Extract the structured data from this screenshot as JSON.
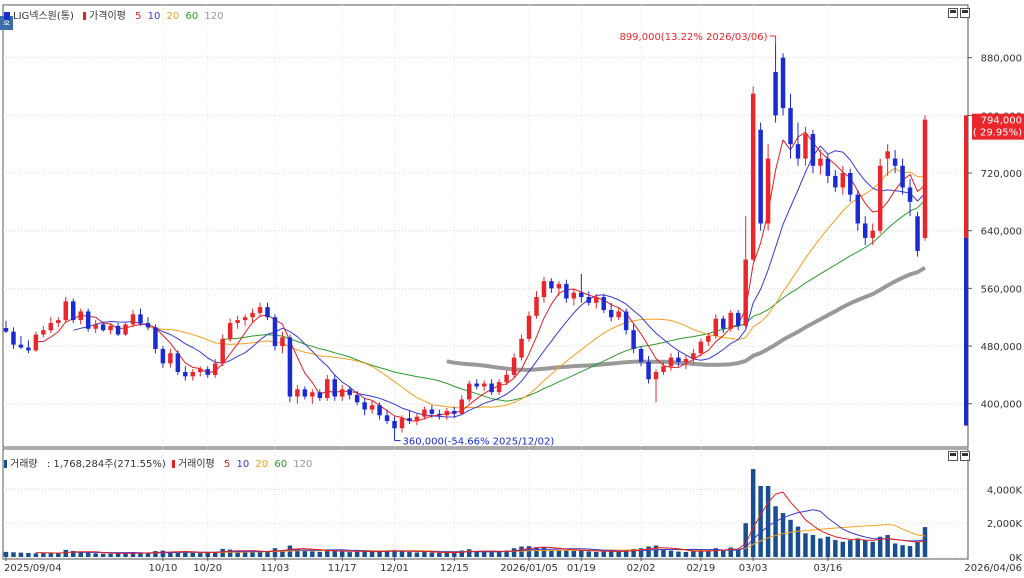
{
  "price_panel": {
    "stock_name": "LIG넥스원(통)",
    "ma_label": "가격이평",
    "ma_periods": [
      "5",
      "10",
      "20",
      "60",
      "120"
    ],
    "y_ticks": [
      "880,000",
      "800,000",
      "720,000",
      "640,000",
      "560,000",
      "480,000",
      "400,000"
    ],
    "high_annotation": "899,000(13.22% 2026/03/06)",
    "low_annotation": "360,000(-54.66% 2025/12/02)",
    "current_price": "794,000",
    "current_change": "( 29.95%)"
  },
  "volume_panel": {
    "label": "거래량",
    "value_text": ": 1,768,284주(271.55%)",
    "ma_label": "거래이평",
    "ma_periods": [
      "5",
      "10",
      "20",
      "60",
      "120"
    ],
    "y_ticks": [
      "4,000K",
      "2,000K",
      "0K"
    ]
  },
  "x_axis": {
    "labels": [
      "2025/09/04",
      "10/10",
      "10/20",
      "11/03",
      "11/17",
      "12/01",
      "12/15",
      "2026/01/05",
      "01/19",
      "02/02",
      "02/19",
      "03/03",
      "03/16",
      "2026/04/06"
    ]
  },
  "corner_tab": "호",
  "colors": {
    "up": "#e8262b",
    "down": "#1a2bd1",
    "ma5": "#e02020",
    "ma10": "#3a3ad6",
    "ma20": "#f0a020",
    "ma60": "#2a9a2a",
    "ma120": "#999999",
    "volume_bar": "#1a4f8f"
  },
  "chart_data": {
    "type": "candlestick",
    "price_ylim": [
      340000,
      935000
    ],
    "volume_ylim": [
      0,
      5500
    ],
    "volume_unit": "K",
    "candles": [
      {
        "d": "2025/09/04",
        "o": 505000,
        "h": 515000,
        "l": 498000,
        "c": 500000,
        "v": 300
      },
      {
        "d": "",
        "o": 500000,
        "h": 506000,
        "l": 476000,
        "c": 482000,
        "v": 280
      },
      {
        "d": "",
        "o": 482000,
        "h": 494000,
        "l": 476000,
        "c": 478000,
        "v": 260
      },
      {
        "d": "",
        "o": 478000,
        "h": 488000,
        "l": 470000,
        "c": 474000,
        "v": 240
      },
      {
        "d": "",
        "o": 474000,
        "h": 500000,
        "l": 472000,
        "c": 496000,
        "v": 220
      },
      {
        "d": "",
        "o": 496000,
        "h": 508000,
        "l": 492000,
        "c": 502000,
        "v": 230
      },
      {
        "d": "",
        "o": 502000,
        "h": 520000,
        "l": 498000,
        "c": 512000,
        "v": 260
      },
      {
        "d": "",
        "o": 512000,
        "h": 520000,
        "l": 506000,
        "c": 516000,
        "v": 210
      },
      {
        "d": "",
        "o": 516000,
        "h": 548000,
        "l": 512000,
        "c": 542000,
        "v": 420
      },
      {
        "d": "",
        "o": 542000,
        "h": 546000,
        "l": 512000,
        "c": 516000,
        "v": 360
      },
      {
        "d": "",
        "o": 516000,
        "h": 532000,
        "l": 510000,
        "c": 528000,
        "v": 280
      },
      {
        "d": "",
        "o": 528000,
        "h": 532000,
        "l": 500000,
        "c": 504000,
        "v": 260
      },
      {
        "d": "",
        "o": 504000,
        "h": 516000,
        "l": 498000,
        "c": 510000,
        "v": 220
      },
      {
        "d": "",
        "o": 510000,
        "h": 514000,
        "l": 500000,
        "c": 502000,
        "v": 200
      },
      {
        "d": "",
        "o": 502000,
        "h": 512000,
        "l": 496000,
        "c": 508000,
        "v": 190
      },
      {
        "d": "",
        "o": 508000,
        "h": 512000,
        "l": 494000,
        "c": 496000,
        "v": 210
      },
      {
        "d": "",
        "o": 496000,
        "h": 512000,
        "l": 494000,
        "c": 510000,
        "v": 240
      },
      {
        "d": "",
        "o": 510000,
        "h": 530000,
        "l": 506000,
        "c": 524000,
        "v": 280
      },
      {
        "d": "",
        "o": 524000,
        "h": 532000,
        "l": 508000,
        "c": 512000,
        "v": 230
      },
      {
        "d": "",
        "o": 512000,
        "h": 520000,
        "l": 502000,
        "c": 506000,
        "v": 210
      },
      {
        "d": "",
        "o": 506000,
        "h": 510000,
        "l": 470000,
        "c": 476000,
        "v": 350
      },
      {
        "d": "10/10",
        "o": 476000,
        "h": 480000,
        "l": 450000,
        "c": 456000,
        "v": 380
      },
      {
        "d": "",
        "o": 456000,
        "h": 476000,
        "l": 450000,
        "c": 470000,
        "v": 300
      },
      {
        "d": "",
        "o": 470000,
        "h": 474000,
        "l": 440000,
        "c": 444000,
        "v": 320
      },
      {
        "d": "",
        "o": 444000,
        "h": 452000,
        "l": 432000,
        "c": 438000,
        "v": 290
      },
      {
        "d": "",
        "o": 438000,
        "h": 448000,
        "l": 432000,
        "c": 444000,
        "v": 250
      },
      {
        "d": "",
        "o": 444000,
        "h": 452000,
        "l": 438000,
        "c": 448000,
        "v": 230
      },
      {
        "d": "10/20",
        "o": 448000,
        "h": 452000,
        "l": 436000,
        "c": 440000,
        "v": 260
      },
      {
        "d": "",
        "o": 440000,
        "h": 462000,
        "l": 436000,
        "c": 456000,
        "v": 300
      },
      {
        "d": "",
        "o": 456000,
        "h": 496000,
        "l": 452000,
        "c": 490000,
        "v": 480
      },
      {
        "d": "",
        "o": 490000,
        "h": 518000,
        "l": 486000,
        "c": 512000,
        "v": 440
      },
      {
        "d": "",
        "o": 512000,
        "h": 522000,
        "l": 504000,
        "c": 516000,
        "v": 350
      },
      {
        "d": "",
        "o": 516000,
        "h": 524000,
        "l": 508000,
        "c": 520000,
        "v": 300
      },
      {
        "d": "",
        "o": 520000,
        "h": 532000,
        "l": 512000,
        "c": 526000,
        "v": 320
      },
      {
        "d": "",
        "o": 526000,
        "h": 540000,
        "l": 520000,
        "c": 534000,
        "v": 340
      },
      {
        "d": "",
        "o": 534000,
        "h": 540000,
        "l": 516000,
        "c": 520000,
        "v": 300
      },
      {
        "d": "11/03",
        "o": 520000,
        "h": 524000,
        "l": 474000,
        "c": 480000,
        "v": 520
      },
      {
        "d": "",
        "o": 480000,
        "h": 500000,
        "l": 470000,
        "c": 492000,
        "v": 400
      },
      {
        "d": "",
        "o": 492000,
        "h": 496000,
        "l": 402000,
        "c": 410000,
        "v": 680
      },
      {
        "d": "",
        "o": 410000,
        "h": 426000,
        "l": 400000,
        "c": 420000,
        "v": 500
      },
      {
        "d": "",
        "o": 420000,
        "h": 424000,
        "l": 406000,
        "c": 410000,
        "v": 380
      },
      {
        "d": "",
        "o": 410000,
        "h": 420000,
        "l": 400000,
        "c": 416000,
        "v": 330
      },
      {
        "d": "",
        "o": 416000,
        "h": 420000,
        "l": 404000,
        "c": 408000,
        "v": 300
      },
      {
        "d": "",
        "o": 408000,
        "h": 440000,
        "l": 404000,
        "c": 434000,
        "v": 420
      },
      {
        "d": "",
        "o": 434000,
        "h": 440000,
        "l": 404000,
        "c": 410000,
        "v": 380
      },
      {
        "d": "11/17",
        "o": 410000,
        "h": 426000,
        "l": 404000,
        "c": 420000,
        "v": 320
      },
      {
        "d": "",
        "o": 420000,
        "h": 424000,
        "l": 406000,
        "c": 412000,
        "v": 290
      },
      {
        "d": "",
        "o": 412000,
        "h": 418000,
        "l": 398000,
        "c": 402000,
        "v": 310
      },
      {
        "d": "",
        "o": 402000,
        "h": 408000,
        "l": 384000,
        "c": 392000,
        "v": 360
      },
      {
        "d": "",
        "o": 392000,
        "h": 404000,
        "l": 386000,
        "c": 398000,
        "v": 300
      },
      {
        "d": "",
        "o": 398000,
        "h": 402000,
        "l": 378000,
        "c": 384000,
        "v": 330
      },
      {
        "d": "",
        "o": 384000,
        "h": 392000,
        "l": 372000,
        "c": 376000,
        "v": 350
      },
      {
        "d": "12/01",
        "o": 376000,
        "h": 382000,
        "l": 360000,
        "c": 366000,
        "v": 420
      },
      {
        "d": "",
        "o": 366000,
        "h": 384000,
        "l": 360000,
        "c": 380000,
        "v": 380
      },
      {
        "d": "",
        "o": 380000,
        "h": 390000,
        "l": 372000,
        "c": 376000,
        "v": 300
      },
      {
        "d": "",
        "o": 376000,
        "h": 386000,
        "l": 370000,
        "c": 382000,
        "v": 270
      },
      {
        "d": "",
        "o": 382000,
        "h": 396000,
        "l": 378000,
        "c": 392000,
        "v": 300
      },
      {
        "d": "",
        "o": 392000,
        "h": 398000,
        "l": 380000,
        "c": 386000,
        "v": 260
      },
      {
        "d": "",
        "o": 386000,
        "h": 392000,
        "l": 378000,
        "c": 384000,
        "v": 240
      },
      {
        "d": "",
        "o": 384000,
        "h": 394000,
        "l": 378000,
        "c": 390000,
        "v": 250
      },
      {
        "d": "12/15",
        "o": 390000,
        "h": 396000,
        "l": 380000,
        "c": 386000,
        "v": 260
      },
      {
        "d": "",
        "o": 386000,
        "h": 412000,
        "l": 384000,
        "c": 406000,
        "v": 380
      },
      {
        "d": "",
        "o": 406000,
        "h": 432000,
        "l": 402000,
        "c": 428000,
        "v": 460
      },
      {
        "d": "",
        "o": 428000,
        "h": 434000,
        "l": 420000,
        "c": 424000,
        "v": 340
      },
      {
        "d": "",
        "o": 424000,
        "h": 432000,
        "l": 418000,
        "c": 428000,
        "v": 300
      },
      {
        "d": "",
        "o": 428000,
        "h": 434000,
        "l": 412000,
        "c": 416000,
        "v": 290
      },
      {
        "d": "",
        "o": 416000,
        "h": 434000,
        "l": 412000,
        "c": 430000,
        "v": 330
      },
      {
        "d": "",
        "o": 430000,
        "h": 446000,
        "l": 426000,
        "c": 440000,
        "v": 380
      },
      {
        "d": "",
        "o": 440000,
        "h": 470000,
        "l": 436000,
        "c": 464000,
        "v": 520
      },
      {
        "d": "",
        "o": 464000,
        "h": 496000,
        "l": 460000,
        "c": 490000,
        "v": 620
      },
      {
        "d": "2026/01/05",
        "o": 490000,
        "h": 528000,
        "l": 486000,
        "c": 522000,
        "v": 640
      },
      {
        "d": "",
        "o": 522000,
        "h": 556000,
        "l": 518000,
        "c": 548000,
        "v": 580
      },
      {
        "d": "",
        "o": 548000,
        "h": 576000,
        "l": 540000,
        "c": 570000,
        "v": 560
      },
      {
        "d": "",
        "o": 570000,
        "h": 574000,
        "l": 554000,
        "c": 560000,
        "v": 420
      },
      {
        "d": "",
        "o": 560000,
        "h": 570000,
        "l": 550000,
        "c": 566000,
        "v": 380
      },
      {
        "d": "",
        "o": 566000,
        "h": 572000,
        "l": 540000,
        "c": 546000,
        "v": 400
      },
      {
        "d": "",
        "o": 546000,
        "h": 560000,
        "l": 536000,
        "c": 554000,
        "v": 360
      },
      {
        "d": "01/19",
        "o": 554000,
        "h": 580000,
        "l": 540000,
        "c": 548000,
        "v": 420
      },
      {
        "d": "",
        "o": 548000,
        "h": 556000,
        "l": 536000,
        "c": 540000,
        "v": 330
      },
      {
        "d": "",
        "o": 540000,
        "h": 552000,
        "l": 532000,
        "c": 548000,
        "v": 300
      },
      {
        "d": "",
        "o": 548000,
        "h": 552000,
        "l": 526000,
        "c": 530000,
        "v": 320
      },
      {
        "d": "",
        "o": 530000,
        "h": 540000,
        "l": 514000,
        "c": 520000,
        "v": 340
      },
      {
        "d": "",
        "o": 520000,
        "h": 534000,
        "l": 516000,
        "c": 528000,
        "v": 300
      },
      {
        "d": "",
        "o": 528000,
        "h": 532000,
        "l": 496000,
        "c": 502000,
        "v": 420
      },
      {
        "d": "",
        "o": 502000,
        "h": 510000,
        "l": 470000,
        "c": 476000,
        "v": 480
      },
      {
        "d": "02/02",
        "o": 476000,
        "h": 480000,
        "l": 452000,
        "c": 458000,
        "v": 520
      },
      {
        "d": "",
        "o": 458000,
        "h": 466000,
        "l": 428000,
        "c": 434000,
        "v": 620
      },
      {
        "d": "",
        "o": 434000,
        "h": 448000,
        "l": 402000,
        "c": 444000,
        "v": 680
      },
      {
        "d": "",
        "o": 444000,
        "h": 458000,
        "l": 440000,
        "c": 452000,
        "v": 420
      },
      {
        "d": "",
        "o": 452000,
        "h": 470000,
        "l": 446000,
        "c": 464000,
        "v": 380
      },
      {
        "d": "",
        "o": 464000,
        "h": 472000,
        "l": 452000,
        "c": 458000,
        "v": 320
      },
      {
        "d": "",
        "o": 458000,
        "h": 468000,
        "l": 448000,
        "c": 462000,
        "v": 300
      },
      {
        "d": "",
        "o": 462000,
        "h": 476000,
        "l": 456000,
        "c": 470000,
        "v": 330
      },
      {
        "d": "02/19",
        "o": 470000,
        "h": 490000,
        "l": 466000,
        "c": 486000,
        "v": 400
      },
      {
        "d": "",
        "o": 486000,
        "h": 498000,
        "l": 480000,
        "c": 494000,
        "v": 380
      },
      {
        "d": "",
        "o": 494000,
        "h": 524000,
        "l": 490000,
        "c": 518000,
        "v": 520
      },
      {
        "d": "",
        "o": 518000,
        "h": 522000,
        "l": 498000,
        "c": 504000,
        "v": 420
      },
      {
        "d": "",
        "o": 504000,
        "h": 530000,
        "l": 500000,
        "c": 526000,
        "v": 560
      },
      {
        "d": "",
        "o": 526000,
        "h": 530000,
        "l": 502000,
        "c": 508000,
        "v": 480
      },
      {
        "d": "",
        "o": 508000,
        "h": 660000,
        "l": 504000,
        "c": 600000,
        "v": 2000
      },
      {
        "d": "03/03",
        "o": 600000,
        "h": 840000,
        "l": 598000,
        "c": 830000,
        "v": 5200
      },
      {
        "d": "",
        "o": 780000,
        "h": 790000,
        "l": 640000,
        "c": 650000,
        "v": 4200
      },
      {
        "d": "",
        "o": 650000,
        "h": 760000,
        "l": 640000,
        "c": 740000,
        "v": 4200
      },
      {
        "d": "",
        "o": 860000,
        "h": 899000,
        "l": 790000,
        "c": 800000,
        "v": 3000
      },
      {
        "d": "",
        "o": 880000,
        "h": 886000,
        "l": 800000,
        "c": 810000,
        "v": 2600
      },
      {
        "d": "",
        "o": 810000,
        "h": 830000,
        "l": 740000,
        "c": 760000,
        "v": 2200
      },
      {
        "d": "",
        "o": 760000,
        "h": 790000,
        "l": 730000,
        "c": 740000,
        "v": 1800
      },
      {
        "d": "",
        "o": 740000,
        "h": 784000,
        "l": 730000,
        "c": 774000,
        "v": 1400
      },
      {
        "d": "",
        "o": 774000,
        "h": 780000,
        "l": 720000,
        "c": 730000,
        "v": 1300
      },
      {
        "d": "",
        "o": 730000,
        "h": 752000,
        "l": 718000,
        "c": 740000,
        "v": 1100
      },
      {
        "d": "03/16",
        "o": 740000,
        "h": 746000,
        "l": 706000,
        "c": 716000,
        "v": 1200
      },
      {
        "d": "",
        "o": 716000,
        "h": 724000,
        "l": 694000,
        "c": 700000,
        "v": 1000
      },
      {
        "d": "",
        "o": 700000,
        "h": 730000,
        "l": 690000,
        "c": 720000,
        "v": 900
      },
      {
        "d": "",
        "o": 720000,
        "h": 726000,
        "l": 680000,
        "c": 690000,
        "v": 1000
      },
      {
        "d": "",
        "o": 690000,
        "h": 696000,
        "l": 640000,
        "c": 650000,
        "v": 1100
      },
      {
        "d": "",
        "o": 650000,
        "h": 660000,
        "l": 620000,
        "c": 630000,
        "v": 1000
      },
      {
        "d": "",
        "o": 630000,
        "h": 650000,
        "l": 620000,
        "c": 640000,
        "v": 900
      },
      {
        "d": "",
        "o": 640000,
        "h": 740000,
        "l": 636000,
        "c": 730000,
        "v": 1200
      },
      {
        "d": "",
        "o": 740000,
        "h": 760000,
        "l": 716000,
        "c": 750000,
        "v": 1300
      },
      {
        "d": "",
        "o": 740000,
        "h": 752000,
        "l": 720000,
        "c": 730000,
        "v": 800
      },
      {
        "d": "",
        "o": 730000,
        "h": 740000,
        "l": 690000,
        "c": 700000,
        "v": 700
      },
      {
        "d": "",
        "o": 700000,
        "h": 712000,
        "l": 660000,
        "c": 680000,
        "v": 650
      },
      {
        "d": "",
        "o": 660000,
        "h": 666000,
        "l": 604000,
        "c": 612000,
        "v": 900
      },
      {
        "d": "",
        "o": 630000,
        "h": 800000,
        "l": 626000,
        "c": 794000,
        "v": 1768
      }
    ]
  }
}
